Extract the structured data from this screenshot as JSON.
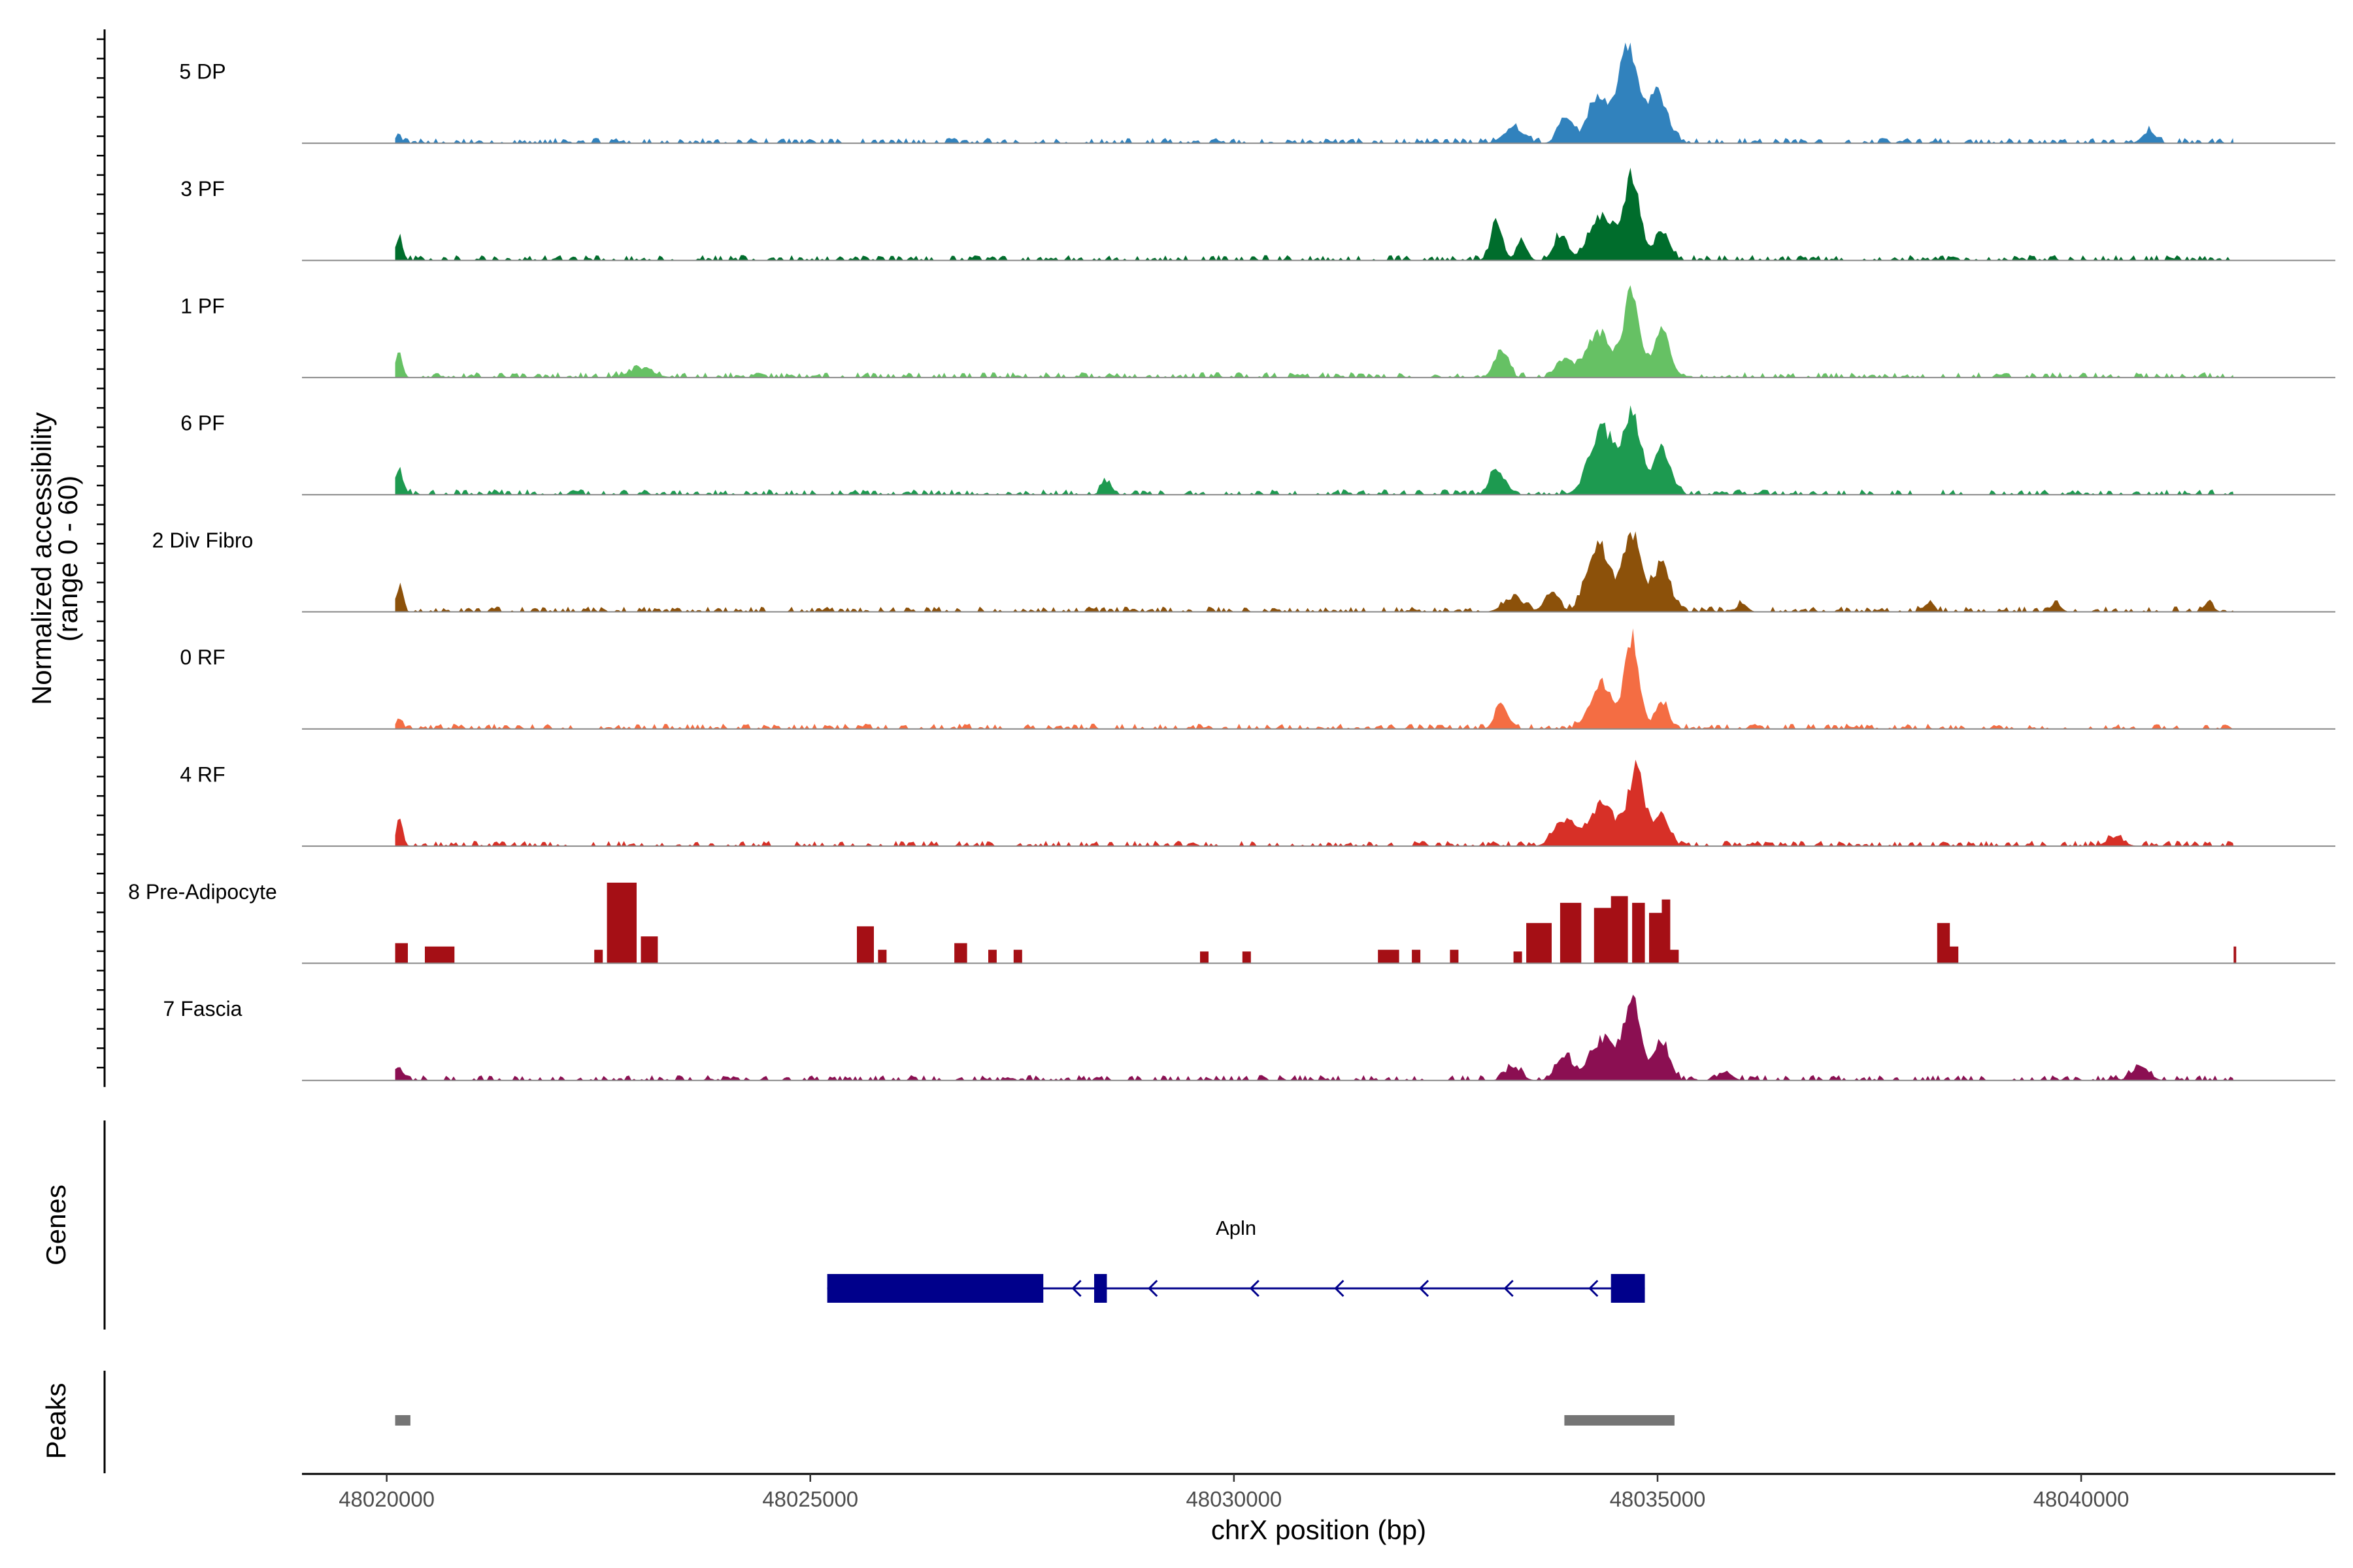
{
  "chart_data": {
    "type": "area",
    "chromosome": "chrX",
    "region_start": 48019000,
    "region_end": 48043000,
    "xlabel": "chrX position (bp)",
    "ylabel_line1": "Normalized accessibility",
    "ylabel_line2": "(range 0 - 60)",
    "y_range": [
      0,
      60
    ],
    "x_ticks": [
      48020000,
      48025000,
      48030000,
      48035000,
      48040000
    ],
    "x_tick_labels": [
      "48020000",
      "48025000",
      "48030000",
      "48035000",
      "48040000"
    ],
    "background_level": 2,
    "series": [
      {
        "name": "5 DP",
        "color": "#3182bd",
        "start": 48020100,
        "end": 48041800,
        "peaks": [
          [
            48020150,
            3,
            40
          ],
          [
            48033300,
            9,
            120
          ],
          [
            48033900,
            14,
            80
          ],
          [
            48034300,
            28,
            130
          ],
          [
            48034650,
            57,
            110
          ],
          [
            48035000,
            30,
            120
          ],
          [
            48040800,
            7,
            80
          ]
        ]
      },
      {
        "name": "3 PF",
        "color": "#006d2c",
        "start": 48020100,
        "end": 48041800,
        "peaks": [
          [
            48020150,
            14,
            40
          ],
          [
            48033100,
            22,
            70
          ],
          [
            48033400,
            12,
            60
          ],
          [
            48033850,
            14,
            80
          ],
          [
            48034350,
            26,
            150
          ],
          [
            48034700,
            48,
            90
          ],
          [
            48035050,
            18,
            90
          ]
        ]
      },
      {
        "name": "1 PF",
        "color": "#66c164",
        "start": 48020100,
        "end": 48041800,
        "peaks": [
          [
            48020150,
            14,
            40
          ],
          [
            48023000,
            5,
            150
          ],
          [
            48033150,
            16,
            80
          ],
          [
            48033900,
            10,
            90
          ],
          [
            48034300,
            26,
            150
          ],
          [
            48034700,
            52,
            90
          ],
          [
            48035050,
            28,
            90
          ]
        ]
      },
      {
        "name": "6 PF",
        "color": "#1d9a50",
        "start": 48020100,
        "end": 48041800,
        "peaks": [
          [
            48020150,
            14,
            50
          ],
          [
            48028500,
            8,
            60
          ],
          [
            48033100,
            15,
            80
          ],
          [
            48034350,
            38,
            150
          ],
          [
            48034700,
            46,
            100
          ],
          [
            48035050,
            28,
            100
          ]
        ]
      },
      {
        "name": "2 Div Fibro",
        "color": "#8c510a",
        "start": 48020100,
        "end": 48041800,
        "peaks": [
          [
            48020150,
            15,
            40
          ],
          [
            48033300,
            8,
            120
          ],
          [
            48033750,
            12,
            80
          ],
          [
            48034300,
            40,
            130
          ],
          [
            48034700,
            45,
            110
          ],
          [
            48035050,
            28,
            100
          ],
          [
            48036000,
            5,
            60
          ],
          [
            48038200,
            5,
            60
          ],
          [
            48039700,
            5,
            60
          ],
          [
            48041500,
            5,
            60
          ]
        ]
      },
      {
        "name": "0 RF",
        "color": "#f46d43",
        "start": 48020100,
        "end": 48041800,
        "peaks": [
          [
            48020150,
            6,
            40
          ],
          [
            48033150,
            15,
            70
          ],
          [
            48034350,
            26,
            140
          ],
          [
            48034700,
            55,
            80
          ],
          [
            48035050,
            15,
            80
          ]
        ]
      },
      {
        "name": "4 RF",
        "color": "#d73027",
        "start": 48020100,
        "end": 48041800,
        "peaks": [
          [
            48020150,
            16,
            40
          ],
          [
            48033900,
            15,
            120
          ],
          [
            48034350,
            25,
            150
          ],
          [
            48034750,
            44,
            100
          ],
          [
            48035050,
            18,
            90
          ],
          [
            48040400,
            5,
            100
          ]
        ]
      },
      {
        "name": "8 Pre-Adipocyte",
        "color": "#a50f15",
        "start": 48020100,
        "end": 48041800,
        "blocks": [
          [
            48020100,
            48020250,
            12
          ],
          [
            48020450,
            48020800,
            10
          ],
          [
            48022450,
            48022550,
            8
          ],
          [
            48022600,
            48022950,
            48
          ],
          [
            48023000,
            48023200,
            16
          ],
          [
            48025550,
            48025750,
            22
          ],
          [
            48025800,
            48025900,
            8
          ],
          [
            48026700,
            48026850,
            12
          ],
          [
            48027100,
            48027200,
            8
          ],
          [
            48027400,
            48027500,
            8
          ],
          [
            48029600,
            48029700,
            7
          ],
          [
            48030100,
            48030200,
            7
          ],
          [
            48031700,
            48031950,
            8
          ],
          [
            48032100,
            48032200,
            8
          ],
          [
            48032550,
            48032650,
            8
          ],
          [
            48033300,
            48033400,
            7
          ],
          [
            48033450,
            48033750,
            24
          ],
          [
            48033850,
            48034100,
            36
          ],
          [
            48034250,
            48034450,
            33
          ],
          [
            48034450,
            48034650,
            40
          ],
          [
            48034700,
            48034850,
            36
          ],
          [
            48034900,
            48035050,
            30
          ],
          [
            48035050,
            48035150,
            38
          ],
          [
            48035150,
            48035250,
            8
          ],
          [
            48038300,
            48038450,
            24
          ],
          [
            48038450,
            48038550,
            10
          ],
          [
            48041800,
            48041830,
            10
          ]
        ]
      },
      {
        "name": "7 Fascia",
        "color": "#8b0f52",
        "start": 48020100,
        "end": 48041800,
        "peaks": [
          [
            48020150,
            8,
            40
          ],
          [
            48033300,
            8,
            90
          ],
          [
            48033900,
            14,
            100
          ],
          [
            48034350,
            24,
            150
          ],
          [
            48034700,
            46,
            100
          ],
          [
            48035050,
            24,
            90
          ],
          [
            48035800,
            5,
            80
          ],
          [
            48040700,
            8,
            100
          ]
        ]
      }
    ],
    "genes": {
      "title": "Genes",
      "items": [
        {
          "name": "Apln",
          "strand": "-",
          "color": "#00008b",
          "start": 48025200,
          "end": 48034850,
          "exons": [
            [
              48025200,
              48027750
            ],
            [
              48028350,
              48028500
            ],
            [
              48034450,
              48034850
            ]
          ],
          "arrow_positions": [
            48028100,
            48029000,
            48030200,
            48031200,
            48032200,
            48033200,
            48034200
          ]
        }
      ]
    },
    "peaks_track": {
      "title": "Peaks",
      "color": "#757575",
      "regions": [
        [
          48020100,
          48020280
        ],
        [
          48033900,
          48035200
        ]
      ]
    }
  }
}
